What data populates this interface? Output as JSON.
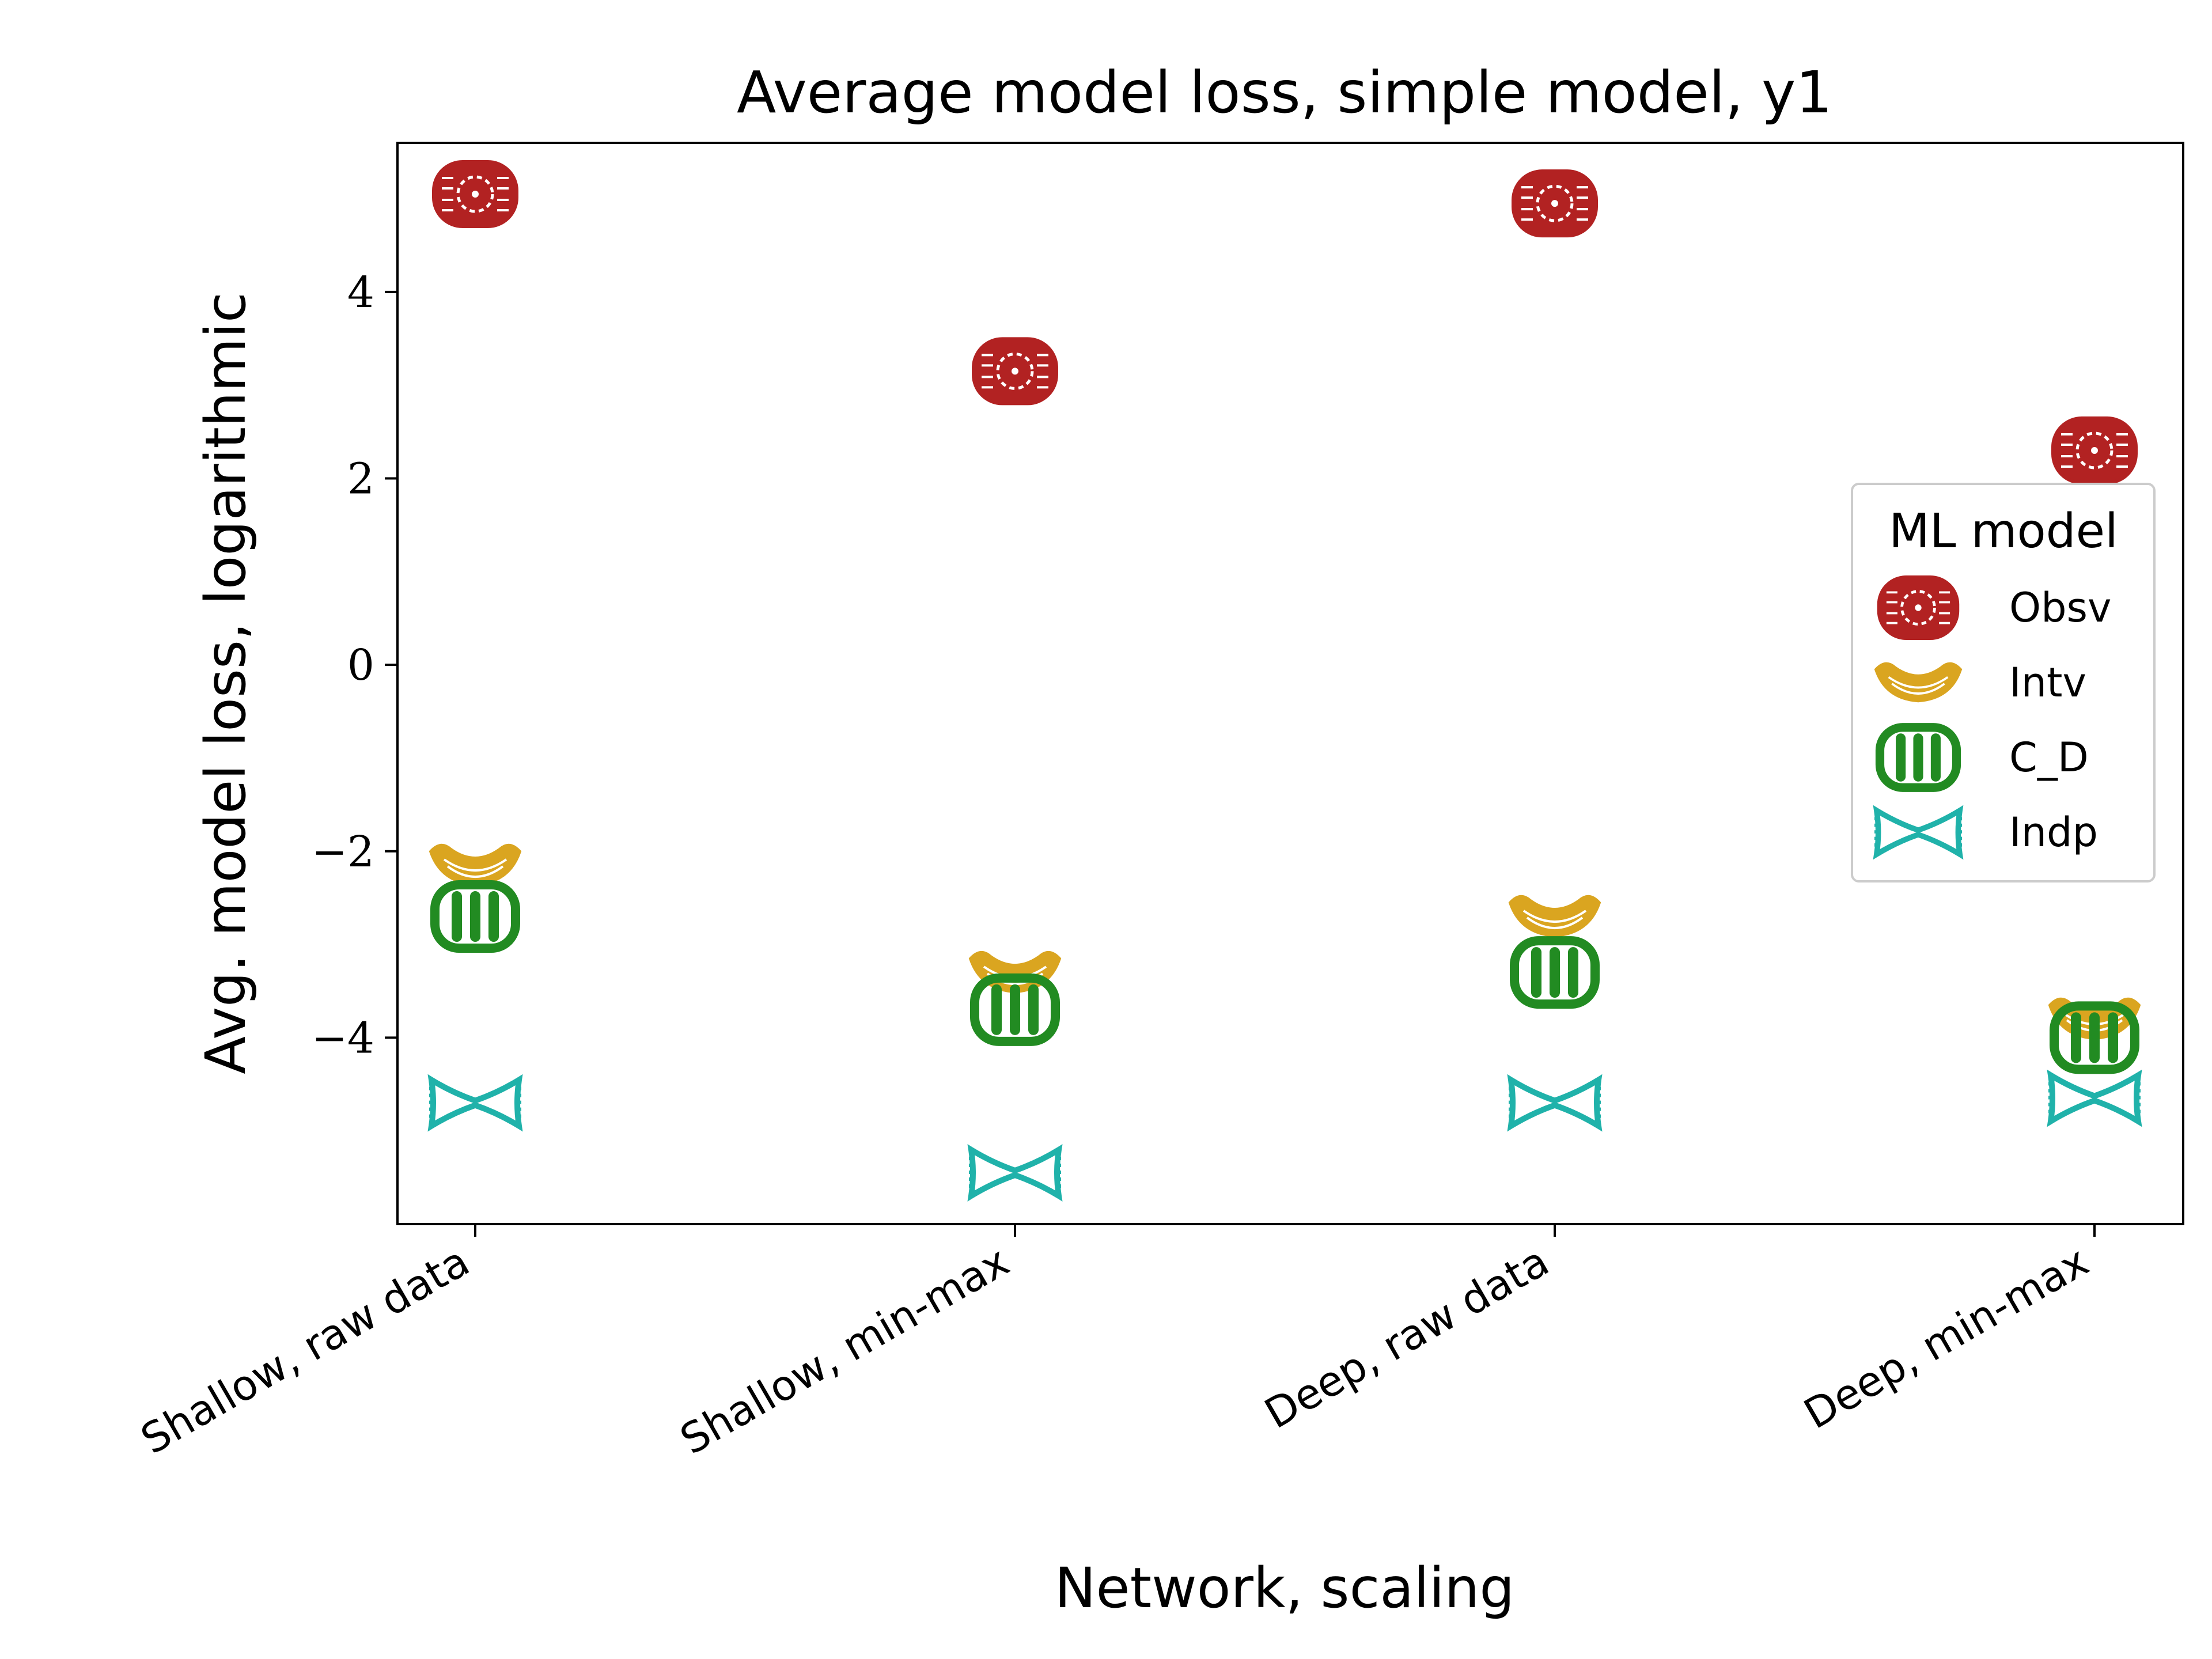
{
  "chart_data": {
    "type": "scatter",
    "title": "Average model loss, simple model, y1",
    "xlabel": "Network, scaling",
    "ylabel": "Avg. model loss, logarithmic",
    "categories": [
      "Shallow, raw data",
      "Shallow, min-max",
      "Deep, raw data",
      "Deep, min-max"
    ],
    "ylim": [
      -6.0,
      5.6
    ],
    "yticks": [
      {
        "value": -4,
        "label": "−4"
      },
      {
        "value": -2,
        "label": "−2"
      },
      {
        "value": 0,
        "label": "0"
      },
      {
        "value": 2,
        "label": "2"
      },
      {
        "value": 4,
        "label": "4"
      }
    ],
    "grid": false,
    "legend": {
      "title": "ML model",
      "placement": "center-right"
    },
    "series": [
      {
        "name": "Obsv",
        "marker": "wheel",
        "color": "#b22222",
        "values": [
          5.05,
          3.15,
          4.95,
          2.3
        ]
      },
      {
        "name": "Intv",
        "marker": "farfalle-arc",
        "color": "#daa520",
        "values": [
          -2.15,
          -3.3,
          -2.7,
          -3.8
        ]
      },
      {
        "name": "C_D",
        "marker": "rigatoni",
        "color": "#228b22",
        "values": [
          -2.7,
          -3.7,
          -3.3,
          -4.0
        ]
      },
      {
        "name": "Indp",
        "marker": "bowtie",
        "color": "#20b2aa",
        "values": [
          -4.7,
          -5.45,
          -4.7,
          -4.65
        ]
      }
    ]
  }
}
